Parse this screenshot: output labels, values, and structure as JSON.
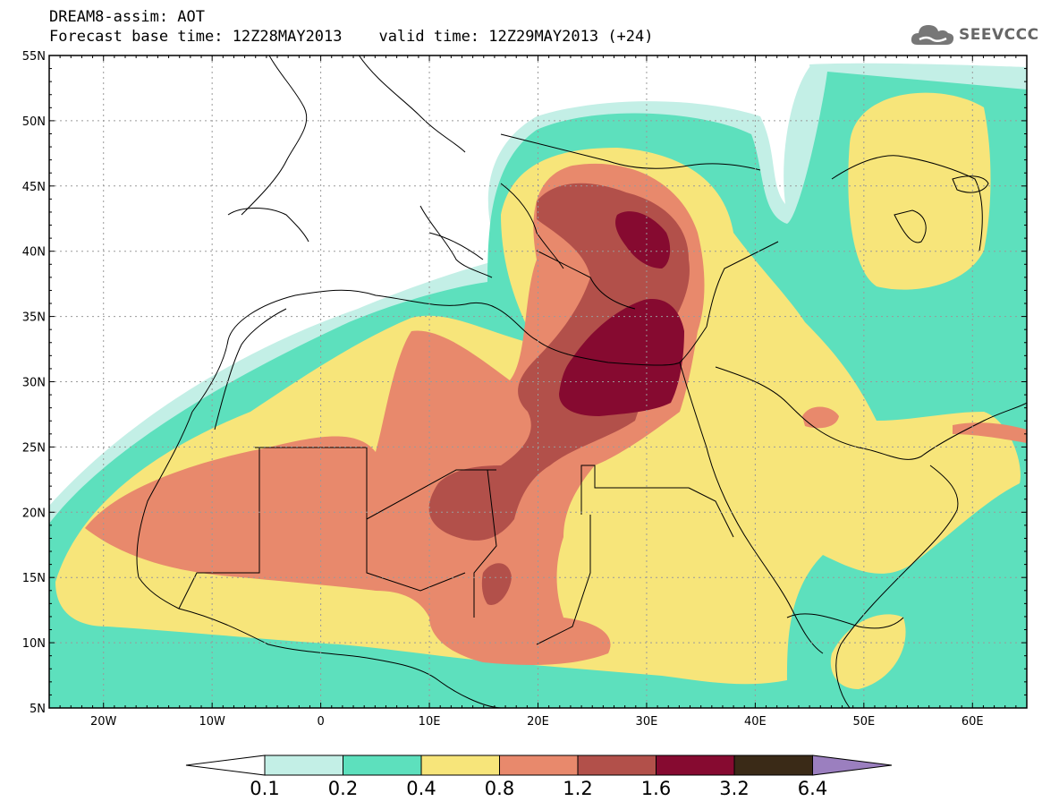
{
  "header": {
    "title_line1": "DREAM8-assim: AOT",
    "title_line2": "Forecast base time: 12Z28MAY2013    valid time: 12Z29MAY2013 (+24)",
    "logo_text": "SEEVCCC"
  },
  "map": {
    "lon_range": [
      -25,
      65
    ],
    "lat_range": [
      5,
      55
    ],
    "lat_ticks": [
      "5N",
      "10N",
      "15N",
      "20N",
      "25N",
      "30N",
      "35N",
      "40N",
      "45N",
      "50N",
      "55N"
    ],
    "lon_ticks": [
      "20W",
      "10W",
      "0",
      "10E",
      "20E",
      "30E",
      "40E",
      "50E",
      "60E"
    ],
    "grid": true
  },
  "colorbar": {
    "labels": [
      "0.1",
      "0.2",
      "0.4",
      "0.8",
      "1.2",
      "1.6",
      "3.2",
      "6.4"
    ],
    "colors": [
      "#ffffff",
      "#c3efe6",
      "#5de0bd",
      "#f7e57a",
      "#e8896c",
      "#b2504a",
      "#860a30",
      "#3a2a17",
      "#9b7fbf"
    ]
  }
}
